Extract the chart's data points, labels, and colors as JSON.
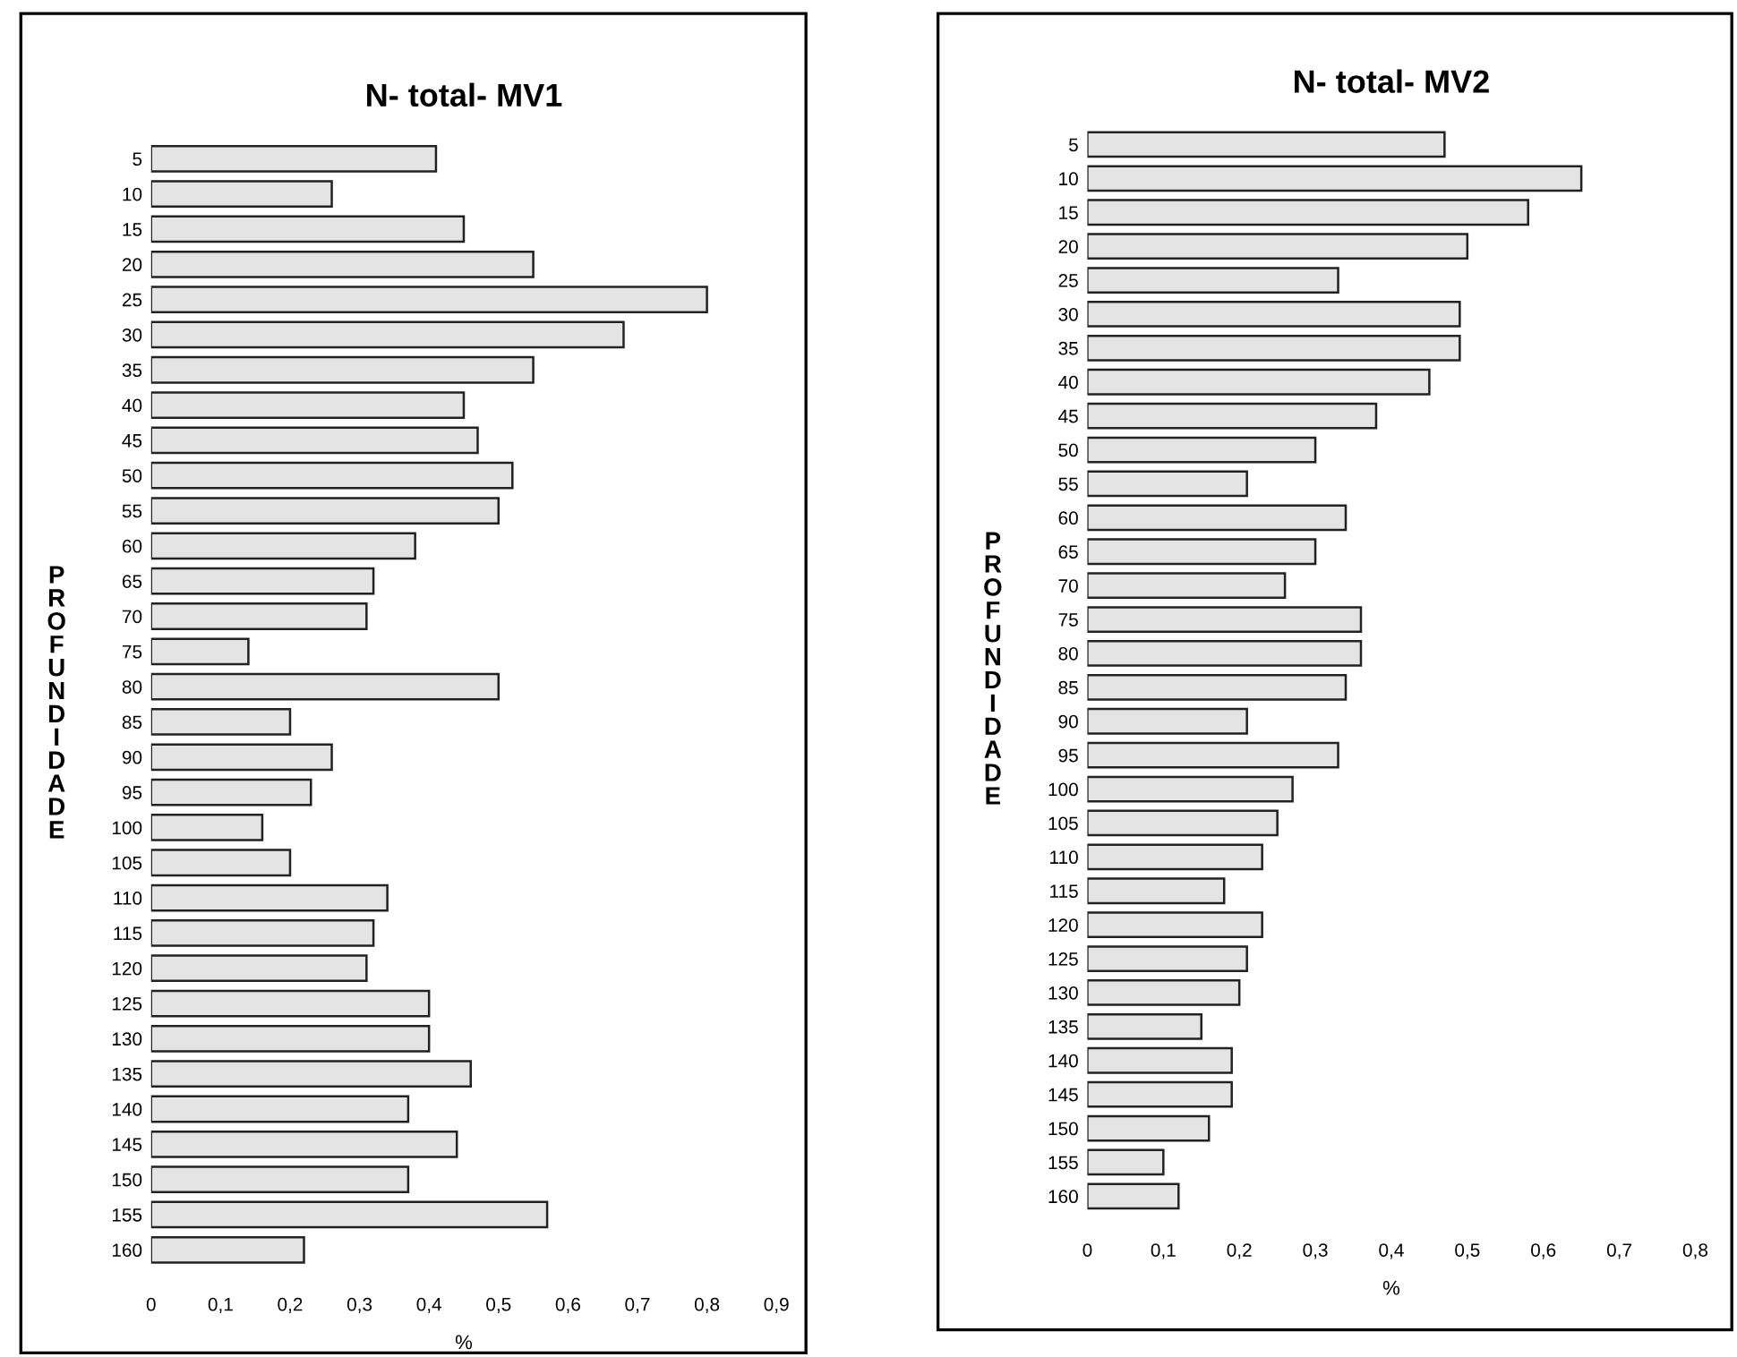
{
  "chart_data": [
    {
      "type": "bar",
      "orientation": "horizontal",
      "title": "N- total- MV1",
      "xlabel": "%",
      "ylabel": "PROFUNDIDADE",
      "categories": [
        "5",
        "10",
        "15",
        "20",
        "25",
        "30",
        "35",
        "40",
        "45",
        "50",
        "55",
        "60",
        "65",
        "70",
        "75",
        "80",
        "85",
        "90",
        "95",
        "100",
        "105",
        "110",
        "115",
        "120",
        "125",
        "130",
        "135",
        "140",
        "145",
        "150",
        "155",
        "160"
      ],
      "values": [
        0.41,
        0.26,
        0.45,
        0.55,
        0.8,
        0.68,
        0.55,
        0.45,
        0.47,
        0.52,
        0.5,
        0.38,
        0.32,
        0.31,
        0.14,
        0.5,
        0.2,
        0.26,
        0.23,
        0.16,
        0.2,
        0.34,
        0.32,
        0.31,
        0.4,
        0.4,
        0.46,
        0.37,
        0.44,
        0.37,
        0.57,
        0.22
      ],
      "color": "#e4e4e4",
      "xlim": [
        0,
        0.9
      ],
      "xticks": [
        0,
        {
          "value": 0.1,
          "label": "0,1"
        },
        {
          "value": 0.2,
          "label": "0,2"
        },
        {
          "value": 0.3,
          "label": "0,3"
        },
        {
          "value": 0.4,
          "label": "0,4"
        },
        {
          "value": 0.5,
          "label": "0,5"
        },
        {
          "value": 0.6,
          "label": "0,6"
        },
        {
          "value": 0.7,
          "label": "0,7"
        },
        {
          "value": 0.8,
          "label": "0,8"
        },
        {
          "value": 0.9,
          "label": "0,9"
        }
      ],
      "grid": false,
      "legend": false
    },
    {
      "type": "bar",
      "orientation": "horizontal",
      "title": "N- total- MV2",
      "xlabel": "%",
      "ylabel": "PROFUNDIDADE",
      "categories": [
        "5",
        "10",
        "15",
        "20",
        "25",
        "30",
        "35",
        "40",
        "45",
        "50",
        "55",
        "60",
        "65",
        "70",
        "75",
        "80",
        "85",
        "90",
        "95",
        "100",
        "105",
        "110",
        "115",
        "120",
        "125",
        "130",
        "135",
        "140",
        "145",
        "150",
        "155",
        "160"
      ],
      "values": [
        0.47,
        0.65,
        0.58,
        0.5,
        0.33,
        0.49,
        0.49,
        0.45,
        0.38,
        0.3,
        0.21,
        0.34,
        0.3,
        0.26,
        0.36,
        0.36,
        0.34,
        0.21,
        0.33,
        0.27,
        0.25,
        0.23,
        0.18,
        0.23,
        0.21,
        0.2,
        0.15,
        0.19,
        0.19,
        0.16,
        0.1,
        0.12
      ],
      "color": "#e4e4e4",
      "xlim": [
        0,
        0.8
      ],
      "xticks": [
        0,
        {
          "value": 0.1,
          "label": "0,1"
        },
        {
          "value": 0.2,
          "label": "0,2"
        },
        {
          "value": 0.3,
          "label": "0,3"
        },
        {
          "value": 0.4,
          "label": "0,4"
        },
        {
          "value": 0.5,
          "label": "0,5"
        },
        {
          "value": 0.6,
          "label": "0,6"
        },
        {
          "value": 0.7,
          "label": "0,7"
        },
        {
          "value": 0.8,
          "label": "0,8"
        }
      ],
      "grid": false,
      "legend": false
    }
  ]
}
